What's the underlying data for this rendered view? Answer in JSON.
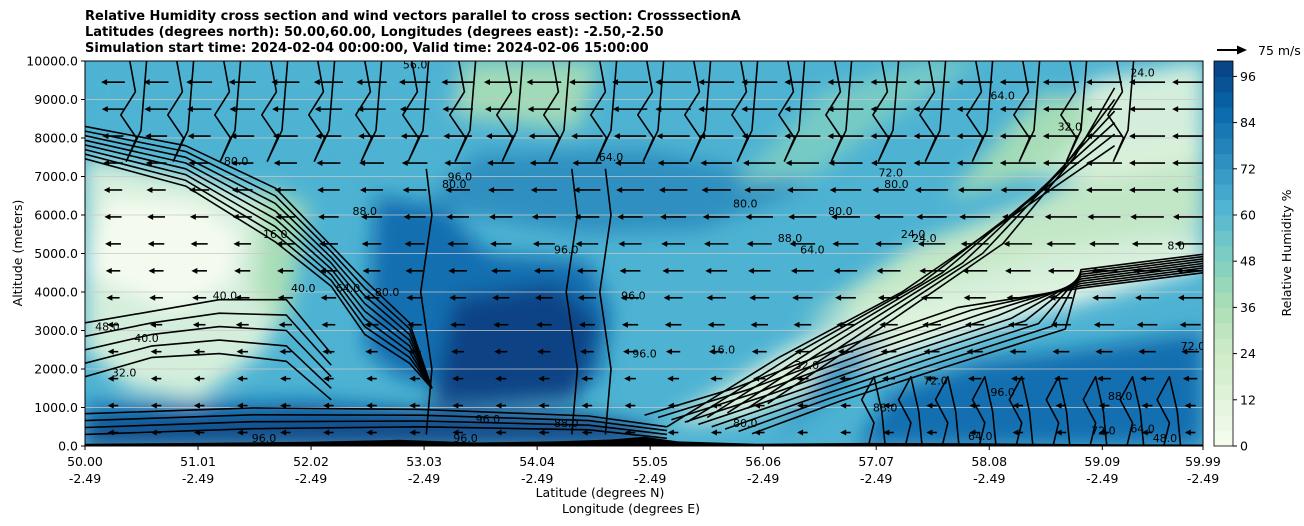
{
  "title_lines": [
    "Relative Humidity cross section and wind vectors parallel to cross section: CrosssectionA",
    "Latitudes (degrees north): 50.00,60.00, Longitudes (degrees east): -2.50,-2.50",
    "Simulation start time: 2024-02-04 00:00:00, Valid time: 2024-02-06 15:00:00"
  ],
  "quiver_key": {
    "label": "75 m/s",
    "speed": 75
  },
  "colorbar": {
    "label": "Relative Humidity %",
    "ticks": [
      "0",
      "12",
      "24",
      "36",
      "48",
      "60",
      "72",
      "84",
      "96"
    ],
    "range": [
      0,
      100
    ],
    "colormap": "GnBu",
    "colors": [
      "#f7fcf0",
      "#e0f3db",
      "#ccebc5",
      "#a8ddb5",
      "#7bccc4",
      "#4eb3d3",
      "#2b8cbe",
      "#0868ac",
      "#084081"
    ]
  },
  "chart_data": {
    "type": "heatmap",
    "description_fields": "filled contours of relative humidity with black contour lines and horizontal wind vectors",
    "xlabel_line1": "Latitude (degrees N)",
    "xlabel_line2": "Longitude (degrees E)",
    "ylabel": "Altitude (meters)",
    "xlim": [
      50.0,
      59.99
    ],
    "ylim": [
      0,
      10000
    ],
    "x_ticks": [
      {
        "lat": "50.00",
        "lon": "-2.49",
        "v": 50.0
      },
      {
        "lat": "51.01",
        "lon": "-2.49",
        "v": 51.01
      },
      {
        "lat": "52.02",
        "lon": "-2.49",
        "v": 52.02
      },
      {
        "lat": "53.03",
        "lon": "-2.49",
        "v": 53.03
      },
      {
        "lat": "54.04",
        "lon": "-2.49",
        "v": 54.04
      },
      {
        "lat": "55.05",
        "lon": "-2.49",
        "v": 55.05
      },
      {
        "lat": "56.06",
        "lon": "-2.49",
        "v": 56.06
      },
      {
        "lat": "57.07",
        "lon": "-2.49",
        "v": 57.07
      },
      {
        "lat": "58.08",
        "lon": "-2.49",
        "v": 58.08
      },
      {
        "lat": "59.09",
        "lon": "-2.49",
        "v": 59.09
      },
      {
        "lat": "59.99",
        "lon": "-2.49",
        "v": 59.99
      }
    ],
    "y_ticks": [
      "0.0",
      "1000.0",
      "2000.0",
      "3000.0",
      "4000.0",
      "5000.0",
      "6000.0",
      "7000.0",
      "8000.0",
      "9000.0",
      "10000.0"
    ],
    "y_tick_values": [
      0,
      1000,
      2000,
      3000,
      4000,
      5000,
      6000,
      7000,
      8000,
      9000,
      10000
    ],
    "grid": "horizontal",
    "contour_labels": [
      {
        "text": "48.0",
        "x": 50.2,
        "y": 3000
      },
      {
        "text": "40.0",
        "x": 50.55,
        "y": 2700
      },
      {
        "text": "32.0",
        "x": 50.35,
        "y": 1800
      },
      {
        "text": "16.0",
        "x": 51.7,
        "y": 5400
      },
      {
        "text": "40.0",
        "x": 51.95,
        "y": 4000
      },
      {
        "text": "40.0",
        "x": 51.25,
        "y": 3800
      },
      {
        "text": "64.0",
        "x": 52.35,
        "y": 4000
      },
      {
        "text": "80.0",
        "x": 52.7,
        "y": 3900
      },
      {
        "text": "88.0",
        "x": 52.5,
        "y": 6000
      },
      {
        "text": "80.0",
        "x": 51.35,
        "y": 7300
      },
      {
        "text": "96.0",
        "x": 54.9,
        "y": 3800
      },
      {
        "text": "96.0",
        "x": 55.0,
        "y": 2300
      },
      {
        "text": "96.0",
        "x": 54.3,
        "y": 5000
      },
      {
        "text": "16.0",
        "x": 55.7,
        "y": 2400
      },
      {
        "text": "32.0",
        "x": 56.45,
        "y": 2000
      },
      {
        "text": "80.0",
        "x": 55.9,
        "y": 500
      },
      {
        "text": "80.0",
        "x": 55.9,
        "y": 6200
      },
      {
        "text": "88.0",
        "x": 56.3,
        "y": 5300
      },
      {
        "text": "80.0",
        "x": 56.75,
        "y": 6000
      },
      {
        "text": "64.0",
        "x": 56.5,
        "y": 5000
      },
      {
        "text": "72.0",
        "x": 57.2,
        "y": 7000
      },
      {
        "text": "80.0",
        "x": 57.25,
        "y": 6700
      },
      {
        "text": "24.0",
        "x": 57.5,
        "y": 5300
      },
      {
        "text": "32.0",
        "x": 58.8,
        "y": 8200
      },
      {
        "text": "24.0",
        "x": 59.45,
        "y": 9600
      },
      {
        "text": "64.0",
        "x": 58.2,
        "y": 9000
      },
      {
        "text": "8.0",
        "x": 59.75,
        "y": 5100
      },
      {
        "text": "72.0",
        "x": 57.6,
        "y": 1600
      },
      {
        "text": "88.0",
        "x": 57.15,
        "y": 900
      },
      {
        "text": "96.0",
        "x": 58.2,
        "y": 1300
      },
      {
        "text": "72.0",
        "x": 59.1,
        "y": 300
      },
      {
        "text": "64.0",
        "x": 59.45,
        "y": 350
      },
      {
        "text": "48.0",
        "x": 59.65,
        "y": 100
      },
      {
        "text": "88.0",
        "x": 59.25,
        "y": 1200
      },
      {
        "text": "72.0",
        "x": 59.9,
        "y": 2500
      },
      {
        "text": "96.0",
        "x": 51.6,
        "y": 100
      },
      {
        "text": "96.0",
        "x": 53.4,
        "y": 100
      },
      {
        "text": "96.0",
        "x": 53.6,
        "y": 600
      },
      {
        "text": "88.0",
        "x": 54.3,
        "y": 500
      },
      {
        "text": "64.0",
        "x": 58.0,
        "y": 150
      },
      {
        "text": "56.0",
        "x": 52.95,
        "y": 9800
      },
      {
        "text": "64.0",
        "x": 54.7,
        "y": 7400
      },
      {
        "text": "80.0",
        "x": 53.3,
        "y": 6700
      },
      {
        "text": "24.0",
        "x": 57.4,
        "y": 5400
      },
      {
        "text": "96.0",
        "x": 53.35,
        "y": 6900
      }
    ],
    "wind": "predominantly westward (leftward) wind vectors across the section; strongest at upper levels on the right side",
    "terrain": "black filled terrain near 0-200 m altitude"
  }
}
